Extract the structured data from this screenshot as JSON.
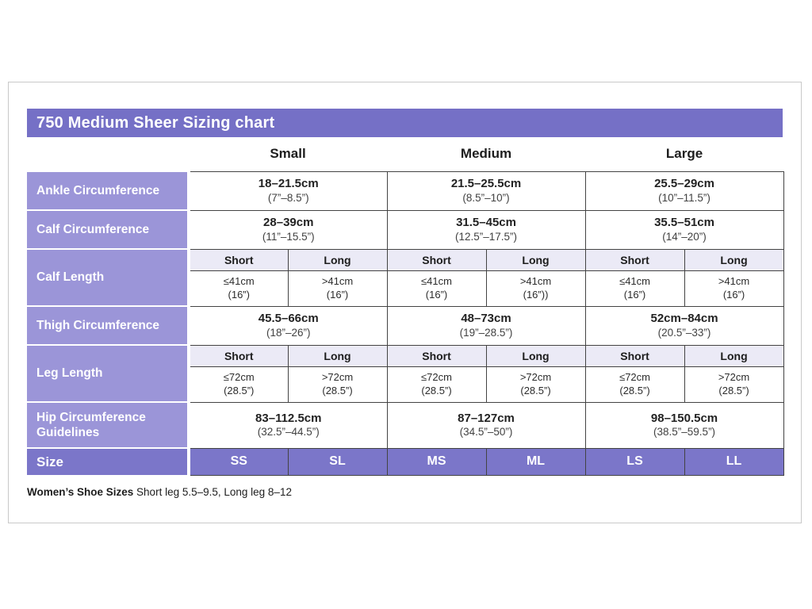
{
  "title": "750 Medium Sheer Sizing chart",
  "colors": {
    "title_bar_purple": "#7570c6",
    "row_label_purple": "#9b95d8",
    "size_row_purple": "#7b76c9",
    "subheader_lavender": "#ebeaf6",
    "grid_border": "#434343"
  },
  "columns": {
    "small": "Small",
    "medium": "Medium",
    "large": "Large"
  },
  "rows": {
    "ankle": {
      "label": "Ankle Circumference",
      "small": {
        "cm": "18–21.5cm",
        "in": "(7”–8.5”)"
      },
      "medium": {
        "cm": "21.5–25.5cm",
        "in": "(8.5”–10”)"
      },
      "large": {
        "cm": "25.5–29cm",
        "in": "(10”–11.5”)"
      }
    },
    "calf_circumference": {
      "label": "Calf Circumference",
      "small": {
        "cm": "28–39cm",
        "in": "(11”–15.5”)"
      },
      "medium": {
        "cm": "31.5–45cm",
        "in": "(12.5”–17.5”)"
      },
      "large": {
        "cm": "35.5–51cm",
        "in": "(14”–20”)"
      }
    },
    "calf_length": {
      "label": "Calf Length",
      "headers": [
        "Short",
        "Long",
        "Short",
        "Long",
        "Short",
        "Long"
      ],
      "cells": [
        {
          "cm": "≤41cm",
          "in": "(16”)"
        },
        {
          "cm": ">41cm",
          "in": "(16”)"
        },
        {
          "cm": "≤41cm",
          "in": "(16”)"
        },
        {
          "cm": ">41cm",
          "in": "(16”))"
        },
        {
          "cm": "≤41cm",
          "in": "(16”)"
        },
        {
          "cm": ">41cm",
          "in": "(16”)"
        }
      ]
    },
    "thigh": {
      "label": "Thigh Circumference",
      "small": {
        "cm": "45.5–66cm",
        "in": "(18”–26”)"
      },
      "medium": {
        "cm": "48–73cm",
        "in": "(19”–28.5”)"
      },
      "large": {
        "cm": "52cm–84cm",
        "in": "(20.5”–33”)"
      }
    },
    "leg_length": {
      "label": "Leg Length",
      "headers": [
        "Short",
        "Long",
        "Short",
        "Long",
        "Short",
        "Long"
      ],
      "cells": [
        {
          "cm": "≤72cm",
          "in": "(28.5”)"
        },
        {
          "cm": ">72cm",
          "in": "(28.5”)"
        },
        {
          "cm": "≤72cm",
          "in": "(28.5”)"
        },
        {
          "cm": ">72cm",
          "in": "(28.5”)"
        },
        {
          "cm": "≤72cm",
          "in": "(28.5”)"
        },
        {
          "cm": ">72cm",
          "in": "(28.5”)"
        }
      ]
    },
    "hip": {
      "label": "Hip Circumference Guidelines",
      "small": {
        "cm": "83–112.5cm",
        "in": "(32.5”–44.5”)"
      },
      "medium": {
        "cm": "87–127cm",
        "in": "(34.5”–50”)"
      },
      "large": {
        "cm": "98–150.5cm",
        "in": "(38.5”–59.5”)"
      }
    },
    "size": {
      "label": "Size",
      "codes": [
        "SS",
        "SL",
        "MS",
        "ML",
        "LS",
        "LL"
      ]
    }
  },
  "footnote": {
    "bold": "Women’s Shoe Sizes",
    "text": " Short leg 5.5–9.5, Long leg 8–12"
  }
}
